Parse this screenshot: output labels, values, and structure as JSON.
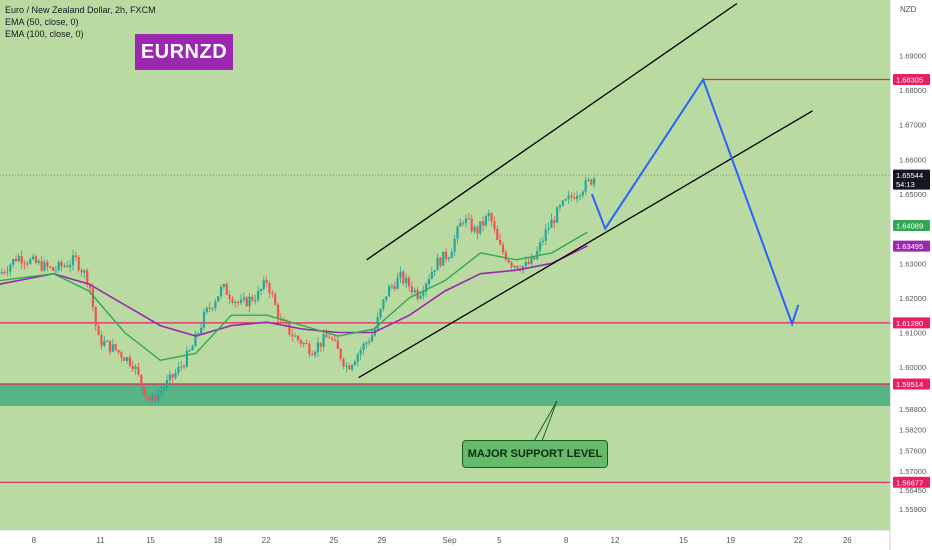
{
  "legend": {
    "title": "Euro / New Zealand Dollar, 2h, FXCM",
    "ema1": "EMA (50, close, 0)",
    "ema2": "EMA (100, close, 0)"
  },
  "badge": "EURNZD",
  "callout": "MAJOR SUPPORT LEVEL",
  "currency": "NZD",
  "colors": {
    "background": "#b9dba1",
    "up_candle": "#26a69a",
    "down_candle": "#ef5350",
    "ema50": "#33a852",
    "ema100": "#9c27b0",
    "level_line": "#e91e63",
    "projection": "#2962ff",
    "support_zone": "#4caf82",
    "badge": "#9c27b0"
  },
  "chart_data": {
    "type": "candlestick",
    "symbol": "EURNZD",
    "ylim": [
      1.553,
      1.706
    ],
    "y_ticks": [
      1.69,
      1.68,
      1.67,
      1.66,
      1.65,
      1.63,
      1.62,
      1.61,
      1.6,
      1.588,
      1.582,
      1.576,
      1.57,
      1.5645,
      1.559
    ],
    "y_tick_labels": [
      "1.69000",
      "1.68000",
      "1.67000",
      "1.66000",
      "1.65000",
      "1.63000",
      "1.62000",
      "1.61000",
      "1.60000",
      "1.58800",
      "1.58200",
      "1.57600",
      "1.57000",
      "1.56450",
      "1.55900"
    ],
    "x_ticks": [
      {
        "label": "8",
        "pos": 0.038
      },
      {
        "label": "11",
        "pos": 0.113
      },
      {
        "label": "15",
        "pos": 0.169
      },
      {
        "label": "18",
        "pos": 0.245
      },
      {
        "label": "22",
        "pos": 0.299
      },
      {
        "label": "25",
        "pos": 0.375
      },
      {
        "label": "29",
        "pos": 0.429
      },
      {
        "label": "Sep",
        "pos": 0.505
      },
      {
        "label": "5",
        "pos": 0.561
      },
      {
        "label": "8",
        "pos": 0.636
      },
      {
        "label": "12",
        "pos": 0.691
      },
      {
        "label": "15",
        "pos": 0.768
      },
      {
        "label": "19",
        "pos": 0.821
      },
      {
        "label": "22",
        "pos": 0.897
      },
      {
        "label": "26",
        "pos": 0.952
      }
    ],
    "price_path": [
      [
        0.0,
        1.627
      ],
      [
        0.02,
        1.632
      ],
      [
        0.04,
        1.63
      ],
      [
        0.06,
        1.628
      ],
      [
        0.085,
        1.631
      ],
      [
        0.1,
        1.625
      ],
      [
        0.11,
        1.608
      ],
      [
        0.13,
        1.605
      ],
      [
        0.15,
        1.601
      ],
      [
        0.16,
        1.594
      ],
      [
        0.17,
        1.59
      ],
      [
        0.18,
        1.593
      ],
      [
        0.2,
        1.599
      ],
      [
        0.215,
        1.605
      ],
      [
        0.23,
        1.615
      ],
      [
        0.25,
        1.623
      ],
      [
        0.27,
        1.618
      ],
      [
        0.29,
        1.621
      ],
      [
        0.3,
        1.625
      ],
      [
        0.315,
        1.613
      ],
      [
        0.33,
        1.609
      ],
      [
        0.35,
        1.605
      ],
      [
        0.37,
        1.609
      ],
      [
        0.39,
        1.6
      ],
      [
        0.405,
        1.605
      ],
      [
        0.42,
        1.61
      ],
      [
        0.435,
        1.622
      ],
      [
        0.45,
        1.626
      ],
      [
        0.47,
        1.621
      ],
      [
        0.49,
        1.63
      ],
      [
        0.505,
        1.633
      ],
      [
        0.52,
        1.643
      ],
      [
        0.535,
        1.639
      ],
      [
        0.55,
        1.644
      ],
      [
        0.56,
        1.635
      ],
      [
        0.575,
        1.63
      ],
      [
        0.59,
        1.629
      ],
      [
        0.6,
        1.631
      ],
      [
        0.615,
        1.64
      ],
      [
        0.63,
        1.646
      ],
      [
        0.645,
        1.65
      ],
      [
        0.66,
        1.653
      ],
      [
        0.67,
        1.6554
      ]
    ],
    "ema50": [
      [
        0.0,
        1.625
      ],
      [
        0.06,
        1.627
      ],
      [
        0.1,
        1.622
      ],
      [
        0.14,
        1.61
      ],
      [
        0.18,
        1.602
      ],
      [
        0.22,
        1.604
      ],
      [
        0.26,
        1.615
      ],
      [
        0.3,
        1.615
      ],
      [
        0.34,
        1.612
      ],
      [
        0.38,
        1.609
      ],
      [
        0.42,
        1.611
      ],
      [
        0.46,
        1.62
      ],
      [
        0.5,
        1.625
      ],
      [
        0.54,
        1.633
      ],
      [
        0.58,
        1.631
      ],
      [
        0.62,
        1.633
      ],
      [
        0.66,
        1.639
      ]
    ],
    "ema100": [
      [
        0.0,
        1.624
      ],
      [
        0.06,
        1.627
      ],
      [
        0.1,
        1.624
      ],
      [
        0.14,
        1.618
      ],
      [
        0.18,
        1.612
      ],
      [
        0.22,
        1.609
      ],
      [
        0.26,
        1.612
      ],
      [
        0.3,
        1.613
      ],
      [
        0.34,
        1.611
      ],
      [
        0.38,
        1.61
      ],
      [
        0.42,
        1.61
      ],
      [
        0.46,
        1.615
      ],
      [
        0.5,
        1.622
      ],
      [
        0.54,
        1.627
      ],
      [
        0.58,
        1.628
      ],
      [
        0.62,
        1.63
      ],
      [
        0.66,
        1.635
      ]
    ],
    "price_labels": [
      {
        "text": "1.68305",
        "value": 1.68305,
        "color": "#e91e63"
      },
      {
        "text": "1.65544",
        "value": 1.65544,
        "sub": "54:13",
        "color": "#131722"
      },
      {
        "text": "1.64089",
        "value": 1.64089,
        "color": "#33a852"
      },
      {
        "text": "1.63495",
        "value": 1.63495,
        "color": "#9c27b0"
      },
      {
        "text": "1.61280",
        "value": 1.6128,
        "color": "#e91e63"
      },
      {
        "text": "1.59514",
        "value": 1.59514,
        "color": "#e91e63"
      },
      {
        "text": "1.56677",
        "value": 1.56677,
        "color": "#e91e63"
      }
    ],
    "levels": [
      1.68305,
      1.6128,
      1.59514,
      1.56677
    ],
    "support_zone": [
      1.5888,
      1.5953
    ],
    "channel_upper": [
      [
        0.412,
        1.631
      ],
      [
        0.828,
        1.705
      ]
    ],
    "channel_lower": [
      [
        0.403,
        1.597
      ],
      [
        0.913,
        1.674
      ]
    ],
    "projection": [
      [
        0.665,
        1.65
      ],
      [
        0.68,
        1.64
      ],
      [
        0.79,
        1.683
      ],
      [
        0.89,
        1.6125
      ],
      [
        0.897,
        1.618
      ]
    ]
  }
}
